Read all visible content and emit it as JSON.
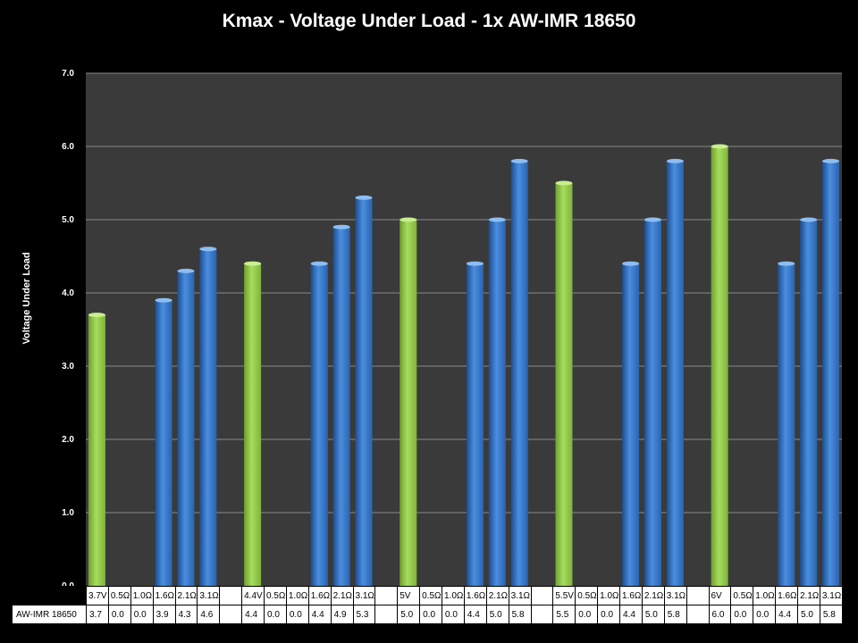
{
  "chart_data": {
    "type": "bar",
    "title": "Kmax - Voltage Under Load - 1x AW-IMR 18650",
    "xlabel": "",
    "ylabel": "Voltage Under Load",
    "ylim": [
      0,
      7
    ],
    "yticks": [
      "0.0",
      "1.0",
      "2.0",
      "3.0",
      "4.0",
      "5.0",
      "6.0",
      "7.0"
    ],
    "grid": true,
    "categories": [
      "3.7V",
      "0.5Ω",
      "1.0Ω",
      "1.6Ω",
      "2.1Ω",
      "3.1Ω",
      "",
      "4.4V",
      "0.5Ω",
      "1.0Ω",
      "1.6Ω",
      "2.1Ω",
      "3.1Ω",
      "",
      "5V",
      "0.5Ω",
      "1.0Ω",
      "1.6Ω",
      "2.1Ω",
      "3.1Ω",
      "",
      "5.5V",
      "0.5Ω",
      "1.0Ω",
      "1.6Ω",
      "2.1Ω",
      "3.1Ω",
      "",
      "6V",
      "0.5Ω",
      "1.0Ω",
      "1.6Ω",
      "2.1Ω",
      "3.1Ω"
    ],
    "series": [
      {
        "name": "AW-IMR 18650",
        "values": [
          3.7,
          0.0,
          0.0,
          3.9,
          4.3,
          4.6,
          null,
          4.4,
          0.0,
          0.0,
          4.4,
          4.9,
          5.3,
          null,
          5.0,
          0.0,
          0.0,
          4.4,
          5.0,
          5.8,
          null,
          5.5,
          0.0,
          0.0,
          4.4,
          5.0,
          5.8,
          null,
          6.0,
          0.0,
          0.0,
          4.4,
          5.0,
          5.8
        ],
        "labels": [
          "3.7",
          "0.0",
          "0.0",
          "3.9",
          "4.3",
          "4.6",
          "",
          "4.4",
          "0.0",
          "0.0",
          "4.4",
          "4.9",
          "5.3",
          "",
          "5.0",
          "0.0",
          "0.0",
          "4.4",
          "5.0",
          "5.8",
          "",
          "5.5",
          "0.0",
          "0.0",
          "4.4",
          "5.0",
          "5.8",
          "",
          "6.0",
          "0.0",
          "0.0",
          "4.4",
          "5.0",
          "5.8"
        ]
      }
    ],
    "colors": {
      "reference_bar": "#92d050",
      "load_bar": "#3a78c8",
      "plot_background": "#3a3a3a",
      "gridline": "#8a8a8a",
      "page_background": "#000000"
    }
  }
}
